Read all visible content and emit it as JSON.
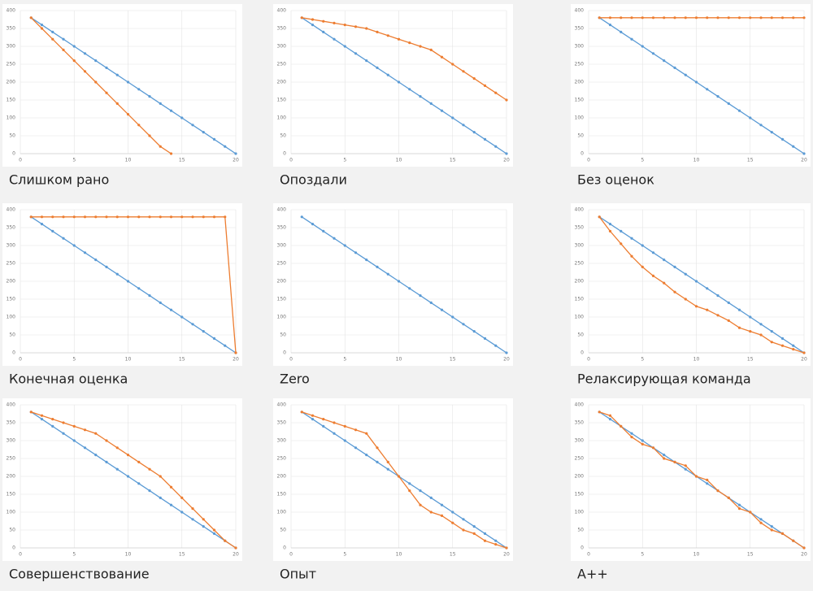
{
  "chart_data": [
    {
      "type": "line",
      "title": "Слишком рано",
      "x": [
        1,
        2,
        3,
        4,
        5,
        6,
        7,
        8,
        9,
        10,
        11,
        12,
        13,
        14,
        15,
        16,
        17,
        18,
        19,
        20
      ],
      "xlim": [
        0,
        20
      ],
      "xticks": [
        0,
        5,
        10,
        15,
        20
      ],
      "ylim": [
        0,
        400
      ],
      "yticks": [
        0,
        50,
        100,
        150,
        200,
        250,
        300,
        350,
        400
      ],
      "grid": true,
      "series": [
        {
          "color": "#5b9bd5",
          "values": [
            380,
            360,
            340,
            320,
            300,
            280,
            260,
            240,
            220,
            200,
            180,
            160,
            140,
            120,
            100,
            80,
            60,
            40,
            20,
            0
          ]
        },
        {
          "color": "#ed7d31",
          "values": [
            380,
            350,
            320,
            290,
            260,
            230,
            200,
            170,
            140,
            110,
            80,
            50,
            20,
            0,
            null,
            null,
            null,
            null,
            null,
            null
          ]
        }
      ]
    },
    {
      "type": "line",
      "title": "Опоздали",
      "x": [
        1,
        2,
        3,
        4,
        5,
        6,
        7,
        8,
        9,
        10,
        11,
        12,
        13,
        14,
        15,
        16,
        17,
        18,
        19,
        20
      ],
      "xlim": [
        0,
        20
      ],
      "xticks": [
        0,
        5,
        10,
        15,
        20
      ],
      "ylim": [
        0,
        400
      ],
      "yticks": [
        0,
        50,
        100,
        150,
        200,
        250,
        300,
        350,
        400
      ],
      "grid": true,
      "series": [
        {
          "color": "#5b9bd5",
          "values": [
            380,
            360,
            340,
            320,
            300,
            280,
            260,
            240,
            220,
            200,
            180,
            160,
            140,
            120,
            100,
            80,
            60,
            40,
            20,
            0
          ]
        },
        {
          "color": "#ed7d31",
          "values": [
            380,
            375,
            370,
            365,
            360,
            355,
            350,
            340,
            330,
            320,
            310,
            300,
            290,
            270,
            250,
            230,
            210,
            190,
            170,
            150
          ]
        }
      ]
    },
    {
      "type": "line",
      "title": "Без оценок",
      "x": [
        1,
        2,
        3,
        4,
        5,
        6,
        7,
        8,
        9,
        10,
        11,
        12,
        13,
        14,
        15,
        16,
        17,
        18,
        19,
        20
      ],
      "xlim": [
        0,
        20
      ],
      "xticks": [
        0,
        5,
        10,
        15,
        20
      ],
      "ylim": [
        0,
        400
      ],
      "yticks": [
        0,
        50,
        100,
        150,
        200,
        250,
        300,
        350,
        400
      ],
      "grid": true,
      "series": [
        {
          "color": "#5b9bd5",
          "values": [
            380,
            360,
            340,
            320,
            300,
            280,
            260,
            240,
            220,
            200,
            180,
            160,
            140,
            120,
            100,
            80,
            60,
            40,
            20,
            0
          ]
        },
        {
          "color": "#ed7d31",
          "values": [
            380,
            380,
            380,
            380,
            380,
            380,
            380,
            380,
            380,
            380,
            380,
            380,
            380,
            380,
            380,
            380,
            380,
            380,
            380,
            380
          ]
        }
      ]
    },
    {
      "type": "line",
      "title": "Конечная оценка",
      "x": [
        1,
        2,
        3,
        4,
        5,
        6,
        7,
        8,
        9,
        10,
        11,
        12,
        13,
        14,
        15,
        16,
        17,
        18,
        19,
        20
      ],
      "xlim": [
        0,
        20
      ],
      "xticks": [
        0,
        5,
        10,
        15,
        20
      ],
      "ylim": [
        0,
        400
      ],
      "yticks": [
        0,
        50,
        100,
        150,
        200,
        250,
        300,
        350,
        400
      ],
      "grid": true,
      "series": [
        {
          "color": "#5b9bd5",
          "values": [
            380,
            360,
            340,
            320,
            300,
            280,
            260,
            240,
            220,
            200,
            180,
            160,
            140,
            120,
            100,
            80,
            60,
            40,
            20,
            0
          ]
        },
        {
          "color": "#ed7d31",
          "values": [
            380,
            380,
            380,
            380,
            380,
            380,
            380,
            380,
            380,
            380,
            380,
            380,
            380,
            380,
            380,
            380,
            380,
            380,
            380,
            0
          ]
        }
      ]
    },
    {
      "type": "line",
      "title": "Zero",
      "x": [
        1,
        2,
        3,
        4,
        5,
        6,
        7,
        8,
        9,
        10,
        11,
        12,
        13,
        14,
        15,
        16,
        17,
        18,
        19,
        20
      ],
      "xlim": [
        0,
        20
      ],
      "xticks": [
        0,
        5,
        10,
        15,
        20
      ],
      "ylim": [
        0,
        400
      ],
      "yticks": [
        0,
        50,
        100,
        150,
        200,
        250,
        300,
        350,
        400
      ],
      "grid": true,
      "series": [
        {
          "color": "#5b9bd5",
          "values": [
            380,
            360,
            340,
            320,
            300,
            280,
            260,
            240,
            220,
            200,
            180,
            160,
            140,
            120,
            100,
            80,
            60,
            40,
            20,
            0
          ]
        }
      ]
    },
    {
      "type": "line",
      "title": "Релаксирующая команда",
      "x": [
        1,
        2,
        3,
        4,
        5,
        6,
        7,
        8,
        9,
        10,
        11,
        12,
        13,
        14,
        15,
        16,
        17,
        18,
        19,
        20
      ],
      "xlim": [
        0,
        20
      ],
      "xticks": [
        0,
        5,
        10,
        15,
        20
      ],
      "ylim": [
        0,
        400
      ],
      "yticks": [
        0,
        50,
        100,
        150,
        200,
        250,
        300,
        350,
        400
      ],
      "grid": true,
      "series": [
        {
          "color": "#5b9bd5",
          "values": [
            380,
            360,
            340,
            320,
            300,
            280,
            260,
            240,
            220,
            200,
            180,
            160,
            140,
            120,
            100,
            80,
            60,
            40,
            20,
            0
          ]
        },
        {
          "color": "#ed7d31",
          "values": [
            380,
            340,
            305,
            270,
            240,
            215,
            195,
            170,
            150,
            130,
            120,
            105,
            90,
            70,
            60,
            50,
            30,
            20,
            10,
            0
          ]
        }
      ]
    },
    {
      "type": "line",
      "title": "Совершенствование",
      "x": [
        1,
        2,
        3,
        4,
        5,
        6,
        7,
        8,
        9,
        10,
        11,
        12,
        13,
        14,
        15,
        16,
        17,
        18,
        19,
        20
      ],
      "xlim": [
        0,
        20
      ],
      "xticks": [
        0,
        5,
        10,
        15,
        20
      ],
      "ylim": [
        0,
        400
      ],
      "yticks": [
        0,
        50,
        100,
        150,
        200,
        250,
        300,
        350,
        400
      ],
      "grid": true,
      "series": [
        {
          "color": "#5b9bd5",
          "values": [
            380,
            360,
            340,
            320,
            300,
            280,
            260,
            240,
            220,
            200,
            180,
            160,
            140,
            120,
            100,
            80,
            60,
            40,
            20,
            0
          ]
        },
        {
          "color": "#ed7d31",
          "values": [
            380,
            370,
            360,
            350,
            340,
            330,
            320,
            300,
            280,
            260,
            240,
            220,
            200,
            170,
            140,
            110,
            80,
            50,
            20,
            0
          ]
        }
      ]
    },
    {
      "type": "line",
      "title": "Опыт",
      "x": [
        1,
        2,
        3,
        4,
        5,
        6,
        7,
        8,
        9,
        10,
        11,
        12,
        13,
        14,
        15,
        16,
        17,
        18,
        19,
        20
      ],
      "xlim": [
        0,
        20
      ],
      "xticks": [
        0,
        5,
        10,
        15,
        20
      ],
      "ylim": [
        0,
        400
      ],
      "yticks": [
        0,
        50,
        100,
        150,
        200,
        250,
        300,
        350,
        400
      ],
      "grid": true,
      "series": [
        {
          "color": "#5b9bd5",
          "values": [
            380,
            360,
            340,
            320,
            300,
            280,
            260,
            240,
            220,
            200,
            180,
            160,
            140,
            120,
            100,
            80,
            60,
            40,
            20,
            0
          ]
        },
        {
          "color": "#ed7d31",
          "values": [
            380,
            370,
            360,
            350,
            340,
            330,
            320,
            280,
            240,
            200,
            160,
            120,
            100,
            90,
            70,
            50,
            40,
            20,
            10,
            0
          ]
        }
      ]
    },
    {
      "type": "line",
      "title": "A++",
      "x": [
        1,
        2,
        3,
        4,
        5,
        6,
        7,
        8,
        9,
        10,
        11,
        12,
        13,
        14,
        15,
        16,
        17,
        18,
        19,
        20
      ],
      "xlim": [
        0,
        20
      ],
      "xticks": [
        0,
        5,
        10,
        15,
        20
      ],
      "ylim": [
        0,
        400
      ],
      "yticks": [
        0,
        50,
        100,
        150,
        200,
        250,
        300,
        350,
        400
      ],
      "grid": true,
      "series": [
        {
          "color": "#5b9bd5",
          "values": [
            380,
            360,
            340,
            320,
            300,
            280,
            260,
            240,
            220,
            200,
            180,
            160,
            140,
            120,
            100,
            80,
            60,
            40,
            20,
            0
          ]
        },
        {
          "color": "#ed7d31",
          "values": [
            380,
            370,
            340,
            310,
            290,
            280,
            250,
            240,
            230,
            200,
            190,
            160,
            140,
            110,
            100,
            70,
            50,
            40,
            20,
            0
          ]
        }
      ]
    }
  ]
}
